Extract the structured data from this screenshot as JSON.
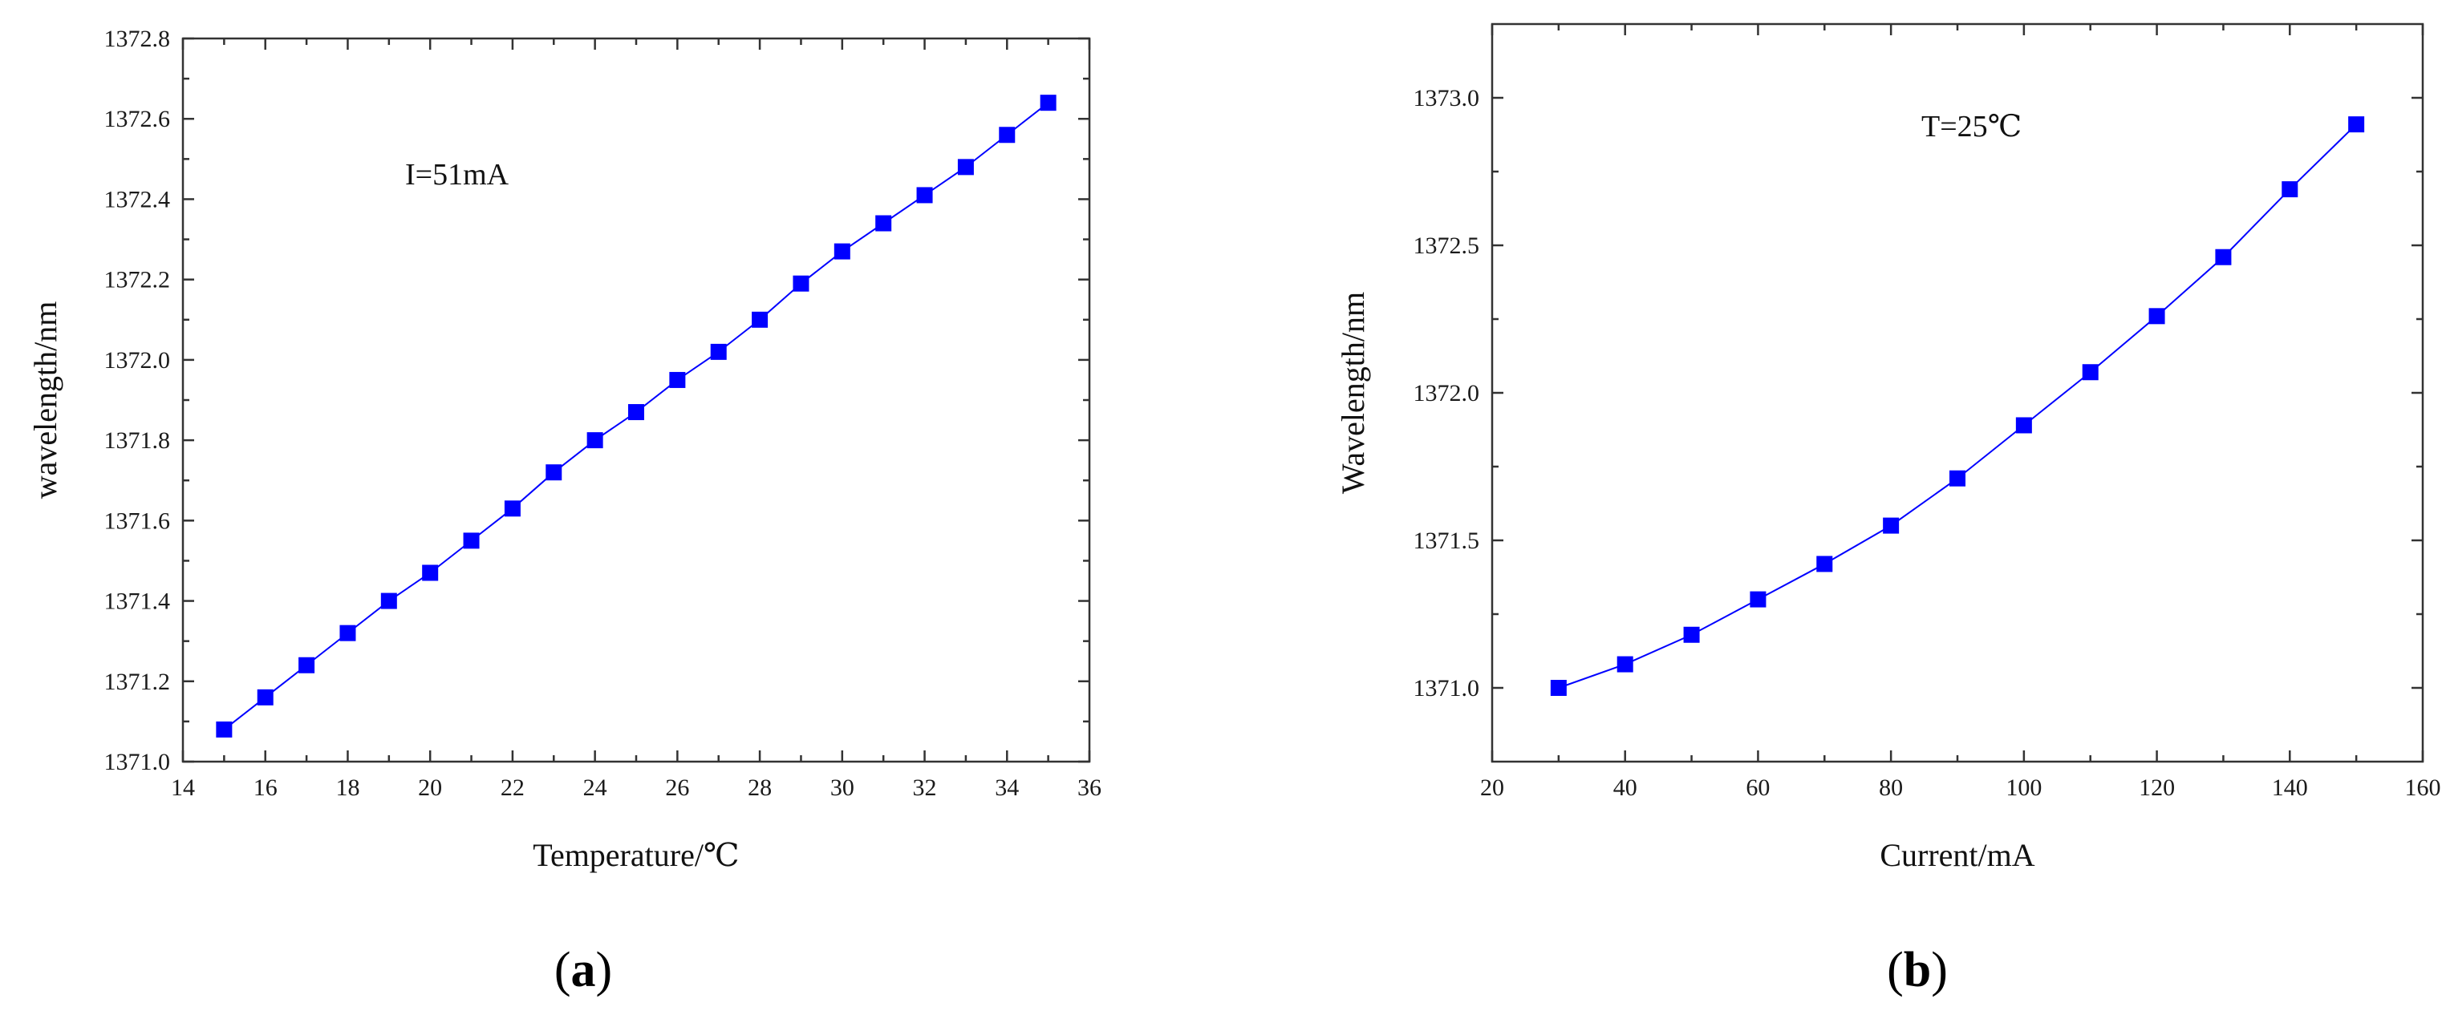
{
  "chart_data": [
    {
      "type": "line",
      "panel_label": "a",
      "annotation": "I=51mA",
      "xlabel": "Temperature/℃",
      "ylabel": "wavelength/nm",
      "xlim": [
        14,
        36
      ],
      "ylim": [
        1371.0,
        1372.8
      ],
      "x_ticks": [
        14,
        16,
        18,
        20,
        22,
        24,
        26,
        28,
        30,
        32,
        34,
        36
      ],
      "x_tick_labels": [
        "14",
        "16",
        "18",
        "20",
        "22",
        "24",
        "26",
        "28",
        "30",
        "32",
        "34",
        "36"
      ],
      "y_ticks": [
        1371.0,
        1371.2,
        1371.4,
        1371.6,
        1371.8,
        1372.0,
        1372.2,
        1372.4,
        1372.6,
        1372.8
      ],
      "y_tick_labels": [
        "1371.0",
        "1371.2",
        "1371.4",
        "1371.6",
        "1371.8",
        "1372.0",
        "1372.2",
        "1372.4",
        "1372.6",
        "1372.8"
      ],
      "grid": false,
      "marker": "square",
      "color": "#0000ff",
      "x": [
        15,
        16,
        17,
        18,
        19,
        20,
        21,
        22,
        23,
        24,
        25,
        26,
        27,
        28,
        29,
        30,
        31,
        32,
        33,
        34,
        35
      ],
      "y": [
        1371.08,
        1371.16,
        1371.24,
        1371.32,
        1371.4,
        1371.47,
        1371.55,
        1371.63,
        1371.72,
        1371.8,
        1371.87,
        1371.95,
        1372.02,
        1372.1,
        1372.19,
        1372.27,
        1372.34,
        1372.41,
        1372.48,
        1372.56,
        1372.64
      ]
    },
    {
      "type": "line",
      "panel_label": "b",
      "annotation": "T=25℃",
      "xlabel": "Current/mA",
      "ylabel": "Wavelength/nm",
      "xlim": [
        20,
        160
      ],
      "ylim": [
        1370.75,
        1373.25
      ],
      "x_ticks": [
        20,
        40,
        60,
        80,
        100,
        120,
        140,
        160
      ],
      "x_tick_labels": [
        "20",
        "40",
        "60",
        "80",
        "100",
        "120",
        "140",
        "160"
      ],
      "y_ticks": [
        1371.0,
        1371.5,
        1372.0,
        1372.5,
        1373.0
      ],
      "y_tick_labels": [
        "1371.0",
        "1371.5",
        "1372.0",
        "1372.5",
        "1373.0"
      ],
      "grid": false,
      "marker": "square",
      "color": "#0000ff",
      "x": [
        30,
        40,
        50,
        60,
        70,
        80,
        90,
        100,
        110,
        120,
        130,
        140,
        150
      ],
      "y": [
        1371.0,
        1371.08,
        1371.18,
        1371.3,
        1371.42,
        1371.55,
        1371.71,
        1371.89,
        1372.07,
        1372.26,
        1372.46,
        1372.69,
        1372.91
      ]
    }
  ]
}
